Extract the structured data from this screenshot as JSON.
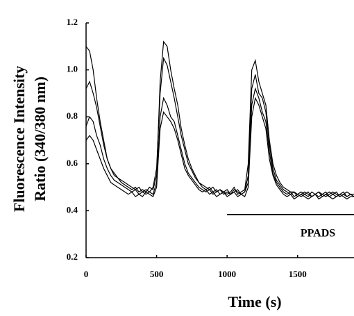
{
  "chart_data": {
    "type": "line",
    "xlabel": "Time (s)",
    "ylabel": [
      "Fluorescence Intensity",
      "Ratio (340/380 nm)"
    ],
    "annotation": {
      "text": "PPADS",
      "x_start": 1000,
      "x_end": 1900
    },
    "x": [
      0,
      25,
      50,
      75,
      100,
      125,
      150,
      175,
      200,
      225,
      250,
      275,
      300,
      325,
      350,
      375,
      400,
      425,
      450,
      475,
      500,
      525,
      550,
      575,
      600,
      625,
      650,
      675,
      700,
      725,
      750,
      775,
      800,
      825,
      850,
      875,
      900,
      925,
      950,
      975,
      1000,
      1025,
      1050,
      1075,
      1100,
      1125,
      1150,
      1175,
      1200,
      1225,
      1250,
      1275,
      1300,
      1325,
      1350,
      1375,
      1400,
      1425,
      1450,
      1475,
      1500,
      1525,
      1550,
      1575,
      1600,
      1625,
      1650,
      1675,
      1700,
      1725,
      1750,
      1775,
      1800,
      1825,
      1850,
      1875,
      1900
    ],
    "series": [
      {
        "color": "#000000",
        "values": [
          1.1,
          1.08,
          1.0,
          0.88,
          0.78,
          0.7,
          0.62,
          0.58,
          0.55,
          0.54,
          0.52,
          0.51,
          0.5,
          0.49,
          0.5,
          0.48,
          0.49,
          0.48,
          0.5,
          0.49,
          0.55,
          0.95,
          1.12,
          1.1,
          1.0,
          0.92,
          0.85,
          0.75,
          0.68,
          0.62,
          0.58,
          0.55,
          0.52,
          0.51,
          0.5,
          0.49,
          0.5,
          0.48,
          0.49,
          0.48,
          0.47,
          0.48,
          0.5,
          0.47,
          0.48,
          0.49,
          0.6,
          1.0,
          1.04,
          0.95,
          0.9,
          0.85,
          0.7,
          0.6,
          0.55,
          0.52,
          0.5,
          0.49,
          0.48,
          0.48,
          0.47,
          0.48,
          0.47,
          0.46,
          0.48,
          0.47,
          0.48,
          0.47,
          0.46,
          0.47,
          0.48,
          0.47,
          0.46,
          0.47,
          0.48,
          0.47,
          0.47
        ]
      },
      {
        "color": "#000000",
        "values": [
          0.92,
          0.95,
          0.9,
          0.84,
          0.76,
          0.68,
          0.62,
          0.58,
          0.56,
          0.54,
          0.53,
          0.52,
          0.51,
          0.5,
          0.49,
          0.5,
          0.48,
          0.49,
          0.48,
          0.5,
          0.58,
          0.9,
          1.05,
          1.02,
          0.95,
          0.88,
          0.8,
          0.72,
          0.66,
          0.6,
          0.57,
          0.54,
          0.52,
          0.5,
          0.49,
          0.5,
          0.48,
          0.49,
          0.47,
          0.48,
          0.49,
          0.47,
          0.48,
          0.49,
          0.47,
          0.48,
          0.55,
          0.92,
          0.98,
          0.9,
          0.88,
          0.82,
          0.68,
          0.58,
          0.53,
          0.51,
          0.49,
          0.48,
          0.47,
          0.48,
          0.46,
          0.47,
          0.48,
          0.47,
          0.46,
          0.47,
          0.48,
          0.46,
          0.47,
          0.48,
          0.47,
          0.46,
          0.47,
          0.48,
          0.46,
          0.47,
          0.47
        ]
      },
      {
        "color": "#000000",
        "values": [
          0.76,
          0.8,
          0.78,
          0.72,
          0.68,
          0.62,
          0.58,
          0.55,
          0.53,
          0.52,
          0.51,
          0.5,
          0.49,
          0.48,
          0.49,
          0.47,
          0.48,
          0.47,
          0.48,
          0.47,
          0.52,
          0.8,
          0.88,
          0.85,
          0.8,
          0.78,
          0.72,
          0.66,
          0.6,
          0.56,
          0.54,
          0.52,
          0.5,
          0.49,
          0.48,
          0.49,
          0.47,
          0.48,
          0.49,
          0.47,
          0.48,
          0.47,
          0.49,
          0.48,
          0.47,
          0.48,
          0.52,
          0.85,
          0.92,
          0.88,
          0.82,
          0.78,
          0.65,
          0.56,
          0.52,
          0.5,
          0.48,
          0.47,
          0.48,
          0.46,
          0.47,
          0.46,
          0.47,
          0.48,
          0.46,
          0.47,
          0.46,
          0.47,
          0.48,
          0.46,
          0.47,
          0.48,
          0.46,
          0.47,
          0.46,
          0.47,
          0.46
        ]
      },
      {
        "color": "#000000",
        "values": [
          0.7,
          0.72,
          0.7,
          0.66,
          0.62,
          0.58,
          0.55,
          0.52,
          0.51,
          0.5,
          0.49,
          0.48,
          0.47,
          0.48,
          0.46,
          0.47,
          0.46,
          0.48,
          0.47,
          0.46,
          0.5,
          0.75,
          0.82,
          0.8,
          0.78,
          0.75,
          0.7,
          0.64,
          0.58,
          0.55,
          0.53,
          0.51,
          0.49,
          0.48,
          0.49,
          0.47,
          0.48,
          0.46,
          0.47,
          0.48,
          0.46,
          0.47,
          0.48,
          0.46,
          0.47,
          0.46,
          0.5,
          0.8,
          0.88,
          0.85,
          0.8,
          0.75,
          0.62,
          0.55,
          0.51,
          0.49,
          0.47,
          0.46,
          0.47,
          0.45,
          0.46,
          0.47,
          0.46,
          0.45,
          0.46,
          0.47,
          0.45,
          0.46,
          0.47,
          0.46,
          0.45,
          0.46,
          0.47,
          0.46,
          0.45,
          0.46,
          0.46
        ]
      }
    ],
    "xlim": [
      0,
      1900
    ],
    "xticks": [
      0,
      500,
      1000,
      1500
    ],
    "ylim": [
      0.2,
      1.2
    ],
    "yticks": [
      0.2,
      0.4,
      0.6,
      0.8,
      {
        "value": 1,
        "label": "1.0"
      },
      1.2
    ]
  }
}
